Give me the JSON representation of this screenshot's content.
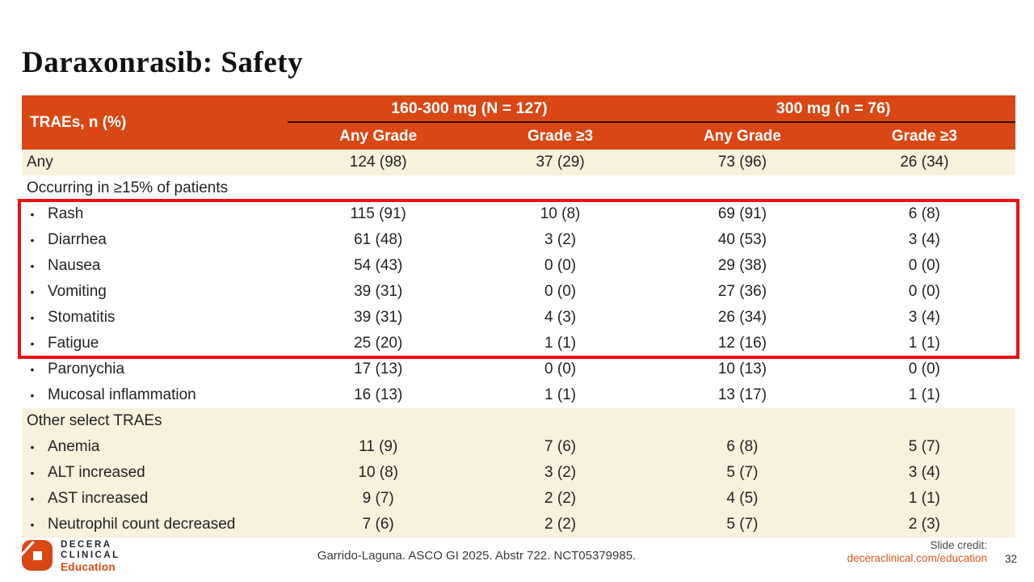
{
  "slide": {
    "title": "Daraxonrasib: Safety",
    "page_number": "32",
    "citation": "Garrido-Laguna. ASCO GI 2025. Abstr 722. NCT05379985.",
    "slide_credit_label": "Slide credit:",
    "slide_credit_link": "deceraclinical.com/education"
  },
  "logo": {
    "line1": "DECERA",
    "line2": "CLINICAL",
    "line3": "Education"
  },
  "colors": {
    "header_orange": "#D94714",
    "row_beige": "#F8F1DC",
    "highlight_red": "#EC1111",
    "link_orange": "#D95520",
    "text_dark": "#222222",
    "header_divider": "#2E1307"
  },
  "table": {
    "corner_label": "TRAEs, n (%)",
    "groups": [
      {
        "label": "160-300 mg (N = 127)",
        "subcols": [
          "Any Grade",
          "Grade ≥3"
        ]
      },
      {
        "label": "300 mg (n = 76)",
        "subcols": [
          "Any Grade",
          "Grade ≥3"
        ]
      }
    ],
    "rows": [
      {
        "kind": "data",
        "shade": "beige",
        "bullet": false,
        "highlight": false,
        "label": "Any",
        "values": [
          "124 (98)",
          "37 (29)",
          "73 (96)",
          "26 (34)"
        ]
      },
      {
        "kind": "section",
        "shade": "white",
        "bullet": false,
        "highlight": false,
        "label": "Occurring in ≥15% of patients",
        "values": []
      },
      {
        "kind": "data",
        "shade": "white",
        "bullet": true,
        "highlight": true,
        "label": "Rash",
        "values": [
          "115 (91)",
          "10 (8)",
          "69 (91)",
          "6 (8)"
        ]
      },
      {
        "kind": "data",
        "shade": "white",
        "bullet": true,
        "highlight": true,
        "label": "Diarrhea",
        "values": [
          "61 (48)",
          "3 (2)",
          "40 (53)",
          "3 (4)"
        ]
      },
      {
        "kind": "data",
        "shade": "white",
        "bullet": true,
        "highlight": true,
        "label": "Nausea",
        "values": [
          "54 (43)",
          "0 (0)",
          "29 (38)",
          "0 (0)"
        ]
      },
      {
        "kind": "data",
        "shade": "white",
        "bullet": true,
        "highlight": true,
        "label": "Vomiting",
        "values": [
          "39 (31)",
          "0 (0)",
          "27 (36)",
          "0 (0)"
        ]
      },
      {
        "kind": "data",
        "shade": "white",
        "bullet": true,
        "highlight": true,
        "label": "Stomatitis",
        "values": [
          "39 (31)",
          "4 (3)",
          "26 (34)",
          "3 (4)"
        ]
      },
      {
        "kind": "data",
        "shade": "white",
        "bullet": true,
        "highlight": true,
        "label": "Fatigue",
        "values": [
          "25 (20)",
          "1 (1)",
          "12 (16)",
          "1 (1)"
        ]
      },
      {
        "kind": "data",
        "shade": "white",
        "bullet": true,
        "highlight": false,
        "label": "Paronychia",
        "values": [
          "17 (13)",
          "0 (0)",
          "10 (13)",
          "0 (0)"
        ]
      },
      {
        "kind": "data",
        "shade": "white",
        "bullet": true,
        "highlight": false,
        "label": "Mucosal inflammation",
        "values": [
          "16 (13)",
          "1 (1)",
          "13 (17)",
          "1 (1)"
        ]
      },
      {
        "kind": "section",
        "shade": "beige",
        "bullet": false,
        "highlight": false,
        "label": "Other select TRAEs",
        "values": []
      },
      {
        "kind": "data",
        "shade": "beige",
        "bullet": true,
        "highlight": false,
        "label": "Anemia",
        "values": [
          "11 (9)",
          "7 (6)",
          "6 (8)",
          "5 (7)"
        ]
      },
      {
        "kind": "data",
        "shade": "beige",
        "bullet": true,
        "highlight": false,
        "label": "ALT increased",
        "values": [
          "10 (8)",
          "3 (2)",
          "5 (7)",
          "3 (4)"
        ]
      },
      {
        "kind": "data",
        "shade": "beige",
        "bullet": true,
        "highlight": false,
        "label": "AST increased",
        "values": [
          "9 (7)",
          "2 (2)",
          "4 (5)",
          "1 (1)"
        ]
      },
      {
        "kind": "data",
        "shade": "beige",
        "bullet": true,
        "highlight": false,
        "label": "Neutrophil count decreased",
        "values": [
          "7 (6)",
          "2 (2)",
          "5 (7)",
          "2 (3)"
        ]
      }
    ]
  }
}
